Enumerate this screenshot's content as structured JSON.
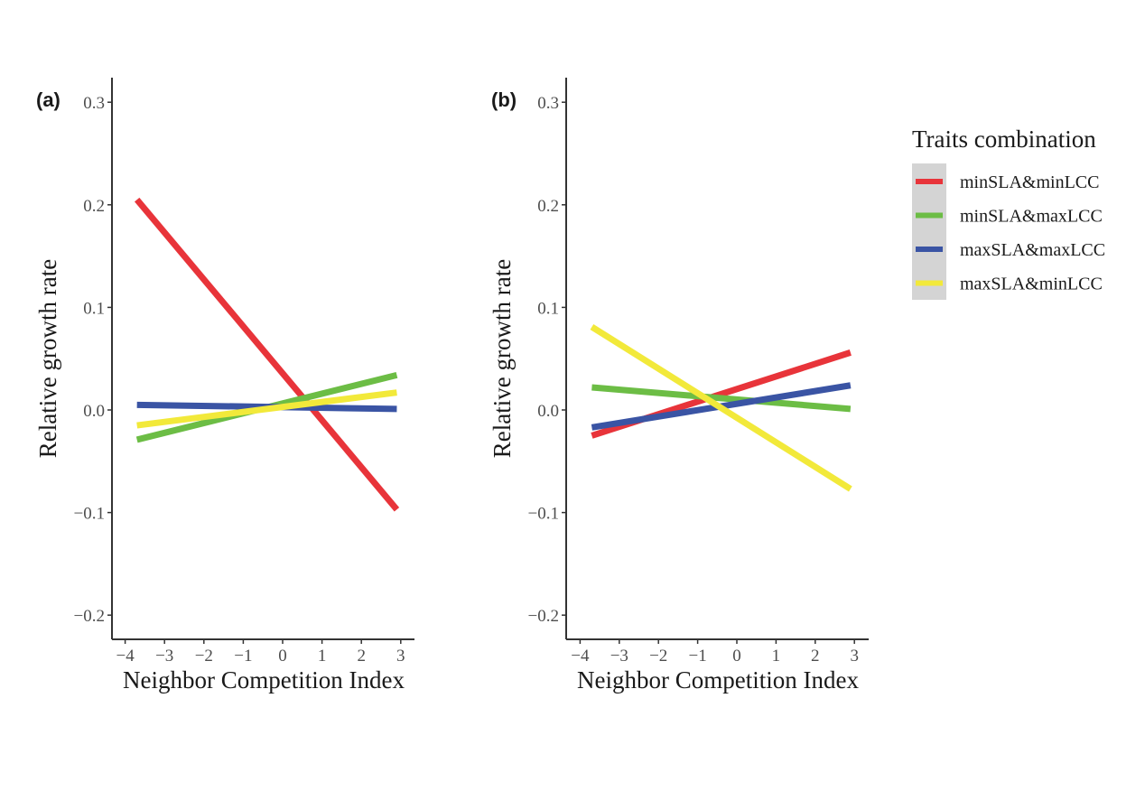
{
  "chart_data": [
    {
      "type": "line",
      "panel_tag": "(a)",
      "xlabel": "Neighbor Competition Index",
      "ylabel": "Relative growth rate",
      "xlim": [
        -4.3,
        3.3
      ],
      "ylim": [
        -0.225,
        0.33
      ],
      "xticks": [
        -4,
        -3,
        -2,
        -1,
        0,
        1,
        2,
        3
      ],
      "xtick_labels": [
        "−4",
        "−3",
        "−2",
        "−1",
        "0",
        "1",
        "2",
        "3"
      ],
      "yticks": [
        -0.2,
        -0.1,
        0.0,
        0.1,
        0.2,
        0.3
      ],
      "ytick_labels": [
        "−0.2",
        "−0.1",
        "0.0",
        "0.1",
        "0.2",
        "0.3"
      ],
      "grid": false,
      "series": [
        {
          "name": "minSLA&minLCC",
          "x": [
            -3.7,
            2.9
          ],
          "y": [
            0.205,
            -0.097
          ]
        },
        {
          "name": "minSLA&maxLCC",
          "x": [
            -3.7,
            2.9
          ],
          "y": [
            -0.029,
            0.034
          ]
        },
        {
          "name": "maxSLA&maxLCC",
          "x": [
            -3.7,
            2.9
          ],
          "y": [
            0.005,
            0.001
          ]
        },
        {
          "name": "maxSLA&minLCC",
          "x": [
            -3.7,
            2.9
          ],
          "y": [
            -0.015,
            0.017
          ]
        }
      ]
    },
    {
      "type": "line",
      "panel_tag": "(b)",
      "xlabel": "Neighbor Competition Index",
      "ylabel": "Relative growth rate",
      "xlim": [
        -4.3,
        3.3
      ],
      "ylim": [
        -0.225,
        0.33
      ],
      "xticks": [
        -4,
        -3,
        -2,
        -1,
        0,
        1,
        2,
        3
      ],
      "xtick_labels": [
        "−4",
        "−3",
        "−2",
        "−1",
        "0",
        "1",
        "2",
        "3"
      ],
      "yticks": [
        -0.2,
        -0.1,
        0.0,
        0.1,
        0.2,
        0.3
      ],
      "ytick_labels": [
        "−0.2",
        "−0.1",
        "0.0",
        "0.1",
        "0.2",
        "0.3"
      ],
      "grid": false,
      "series": [
        {
          "name": "minSLA&minLCC",
          "x": [
            -3.7,
            2.9
          ],
          "y": [
            -0.025,
            0.056
          ]
        },
        {
          "name": "minSLA&maxLCC",
          "x": [
            -3.7,
            2.9
          ],
          "y": [
            0.022,
            0.001
          ]
        },
        {
          "name": "maxSLA&maxLCC",
          "x": [
            -3.7,
            2.9
          ],
          "y": [
            -0.017,
            0.024
          ]
        },
        {
          "name": "maxSLA&minLCC",
          "x": [
            -3.7,
            2.9
          ],
          "y": [
            0.081,
            -0.077
          ]
        }
      ]
    }
  ],
  "legend": {
    "title": "Traits combination",
    "placement": "right",
    "entries": [
      {
        "label": "minSLA&minLCC",
        "color": "#e8343a"
      },
      {
        "label": "minSLA&maxLCC",
        "color": "#6cbd45"
      },
      {
        "label": "maxSLA&maxLCC",
        "color": "#3a54a4"
      },
      {
        "label": "maxSLA&minLCC",
        "color": "#f2e93a"
      }
    ]
  },
  "colors": {
    "minSLA&minLCC": "#e8343a",
    "minSLA&maxLCC": "#6cbd45",
    "maxSLA&maxLCC": "#3a54a4",
    "maxSLA&minLCC": "#f2e93a",
    "legend_bg": "#d4d4d4"
  }
}
